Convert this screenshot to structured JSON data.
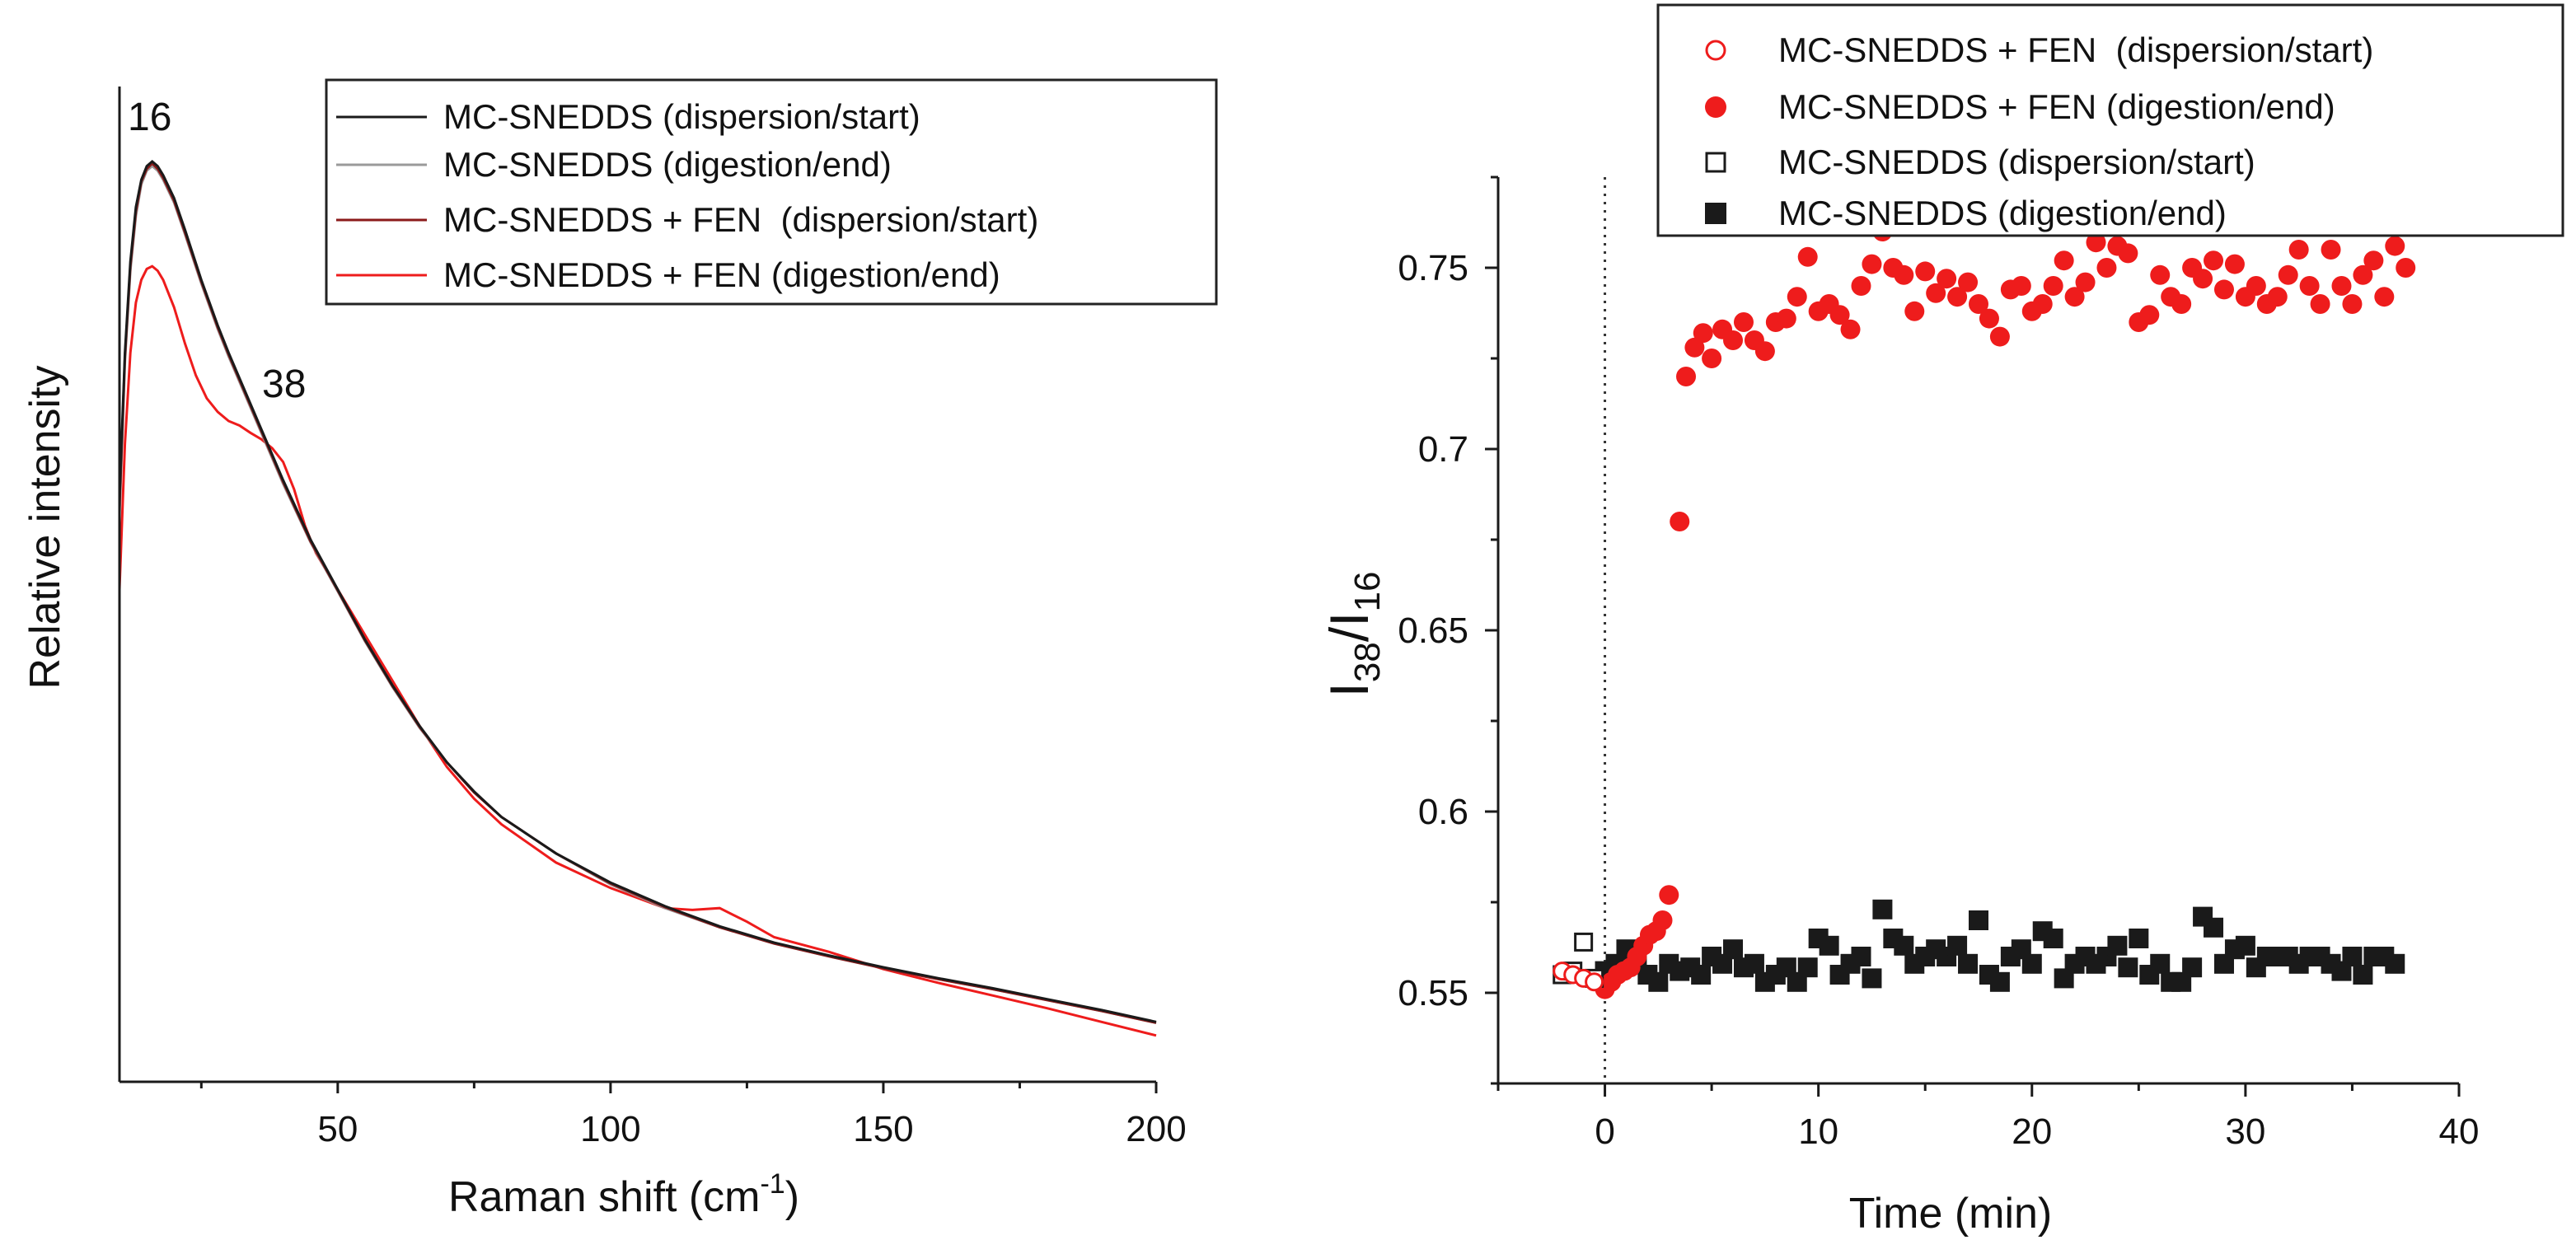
{
  "chart_data": [
    {
      "type": "line",
      "xlabel": "Raman shift (cm",
      "xlabel_sup": "-1",
      "xlabel_end": ")",
      "ylabel": "Relative intensity",
      "xlim": [
        10,
        200
      ],
      "xticks": [
        50,
        100,
        150,
        200
      ],
      "yticks": [],
      "grid": false,
      "legend_position": "top-right",
      "annotations": [
        {
          "text": "16",
          "x": 16
        },
        {
          "text": "38",
          "x": 38
        }
      ],
      "series": [
        {
          "name": "MC-SNEDDS (dispersion/start)",
          "color": "#1a1a1a",
          "x": [
            10,
            11,
            12,
            13,
            14,
            15,
            16,
            17,
            18,
            20,
            22,
            25,
            28,
            30,
            35,
            40,
            45,
            50,
            55,
            60,
            65,
            70,
            75,
            80,
            90,
            100,
            110,
            120,
            130,
            140,
            150,
            160,
            170,
            180,
            190,
            200
          ],
          "y": [
            0.62,
            0.78,
            0.88,
            0.94,
            0.97,
            0.985,
            0.99,
            0.985,
            0.975,
            0.95,
            0.915,
            0.86,
            0.81,
            0.78,
            0.71,
            0.64,
            0.575,
            0.52,
            0.465,
            0.415,
            0.37,
            0.33,
            0.298,
            0.27,
            0.23,
            0.198,
            0.172,
            0.15,
            0.132,
            0.118,
            0.105,
            0.093,
            0.082,
            0.07,
            0.058,
            0.045
          ]
        },
        {
          "name": "MC-SNEDDS (digestion/end)",
          "color": "#9a9a9a",
          "x": [
            10,
            11,
            12,
            13,
            14,
            15,
            16,
            17,
            18,
            20,
            22,
            25,
            28,
            30,
            35,
            40,
            45,
            50,
            55,
            60,
            65,
            70,
            75,
            80,
            90,
            100,
            110,
            120,
            130,
            140,
            150,
            160,
            170,
            180,
            190,
            200
          ],
          "y": [
            0.6,
            0.77,
            0.87,
            0.93,
            0.965,
            0.98,
            0.985,
            0.98,
            0.97,
            0.945,
            0.91,
            0.856,
            0.806,
            0.776,
            0.706,
            0.636,
            0.572,
            0.518,
            0.463,
            0.413,
            0.368,
            0.33,
            0.297,
            0.27,
            0.23,
            0.196,
            0.17,
            0.149,
            0.131,
            0.117,
            0.104,
            0.092,
            0.081,
            0.069,
            0.057,
            0.044
          ]
        },
        {
          "name": "MC-SNEDDS + FEN  (dispersion/start)",
          "color": "#8b1a1a",
          "x": [
            10,
            11,
            12,
            13,
            14,
            15,
            16,
            17,
            18,
            20,
            22,
            25,
            28,
            30,
            35,
            40,
            45,
            50,
            55,
            60,
            65,
            70,
            75,
            80,
            90,
            100,
            110,
            120,
            130,
            140,
            150,
            160,
            170,
            180,
            190,
            200
          ],
          "y": [
            0.61,
            0.775,
            0.875,
            0.935,
            0.968,
            0.982,
            0.988,
            0.982,
            0.972,
            0.947,
            0.912,
            0.858,
            0.808,
            0.778,
            0.708,
            0.638,
            0.573,
            0.519,
            0.464,
            0.414,
            0.369,
            0.33,
            0.297,
            0.27,
            0.23,
            0.197,
            0.171,
            0.149,
            0.131,
            0.117,
            0.104,
            0.092,
            0.081,
            0.069,
            0.057,
            0.044
          ]
        },
        {
          "name": "MC-SNEDDS + FEN (digestion/end)",
          "color": "#ee1c1c",
          "x": [
            10,
            11,
            12,
            13,
            14,
            15,
            16,
            17,
            18,
            20,
            22,
            24,
            26,
            28,
            30,
            32,
            34,
            36,
            38,
            40,
            42,
            44,
            46,
            48,
            50,
            55,
            60,
            65,
            70,
            75,
            80,
            90,
            100,
            110,
            115,
            120,
            125,
            130,
            140,
            150,
            160,
            170,
            180,
            190,
            200
          ],
          "y": [
            0.52,
            0.68,
            0.78,
            0.835,
            0.86,
            0.872,
            0.875,
            0.87,
            0.86,
            0.83,
            0.79,
            0.755,
            0.73,
            0.715,
            0.705,
            0.7,
            0.692,
            0.685,
            0.675,
            0.66,
            0.63,
            0.59,
            0.56,
            0.54,
            0.52,
            0.47,
            0.42,
            0.37,
            0.325,
            0.29,
            0.262,
            0.22,
            0.192,
            0.17,
            0.168,
            0.17,
            0.155,
            0.138,
            0.122,
            0.103,
            0.088,
            0.074,
            0.06,
            0.045,
            0.03
          ]
        }
      ]
    },
    {
      "type": "scatter",
      "xlabel": "Time (min)",
      "ylabel_main": "I",
      "ylabel_sub1": "38",
      "ylabel_mid": "/I",
      "ylabel_sub2": "16",
      "xlim": [
        -5,
        40
      ],
      "ylim": [
        0.525,
        0.775
      ],
      "xticks": [
        0,
        10,
        20,
        30,
        40
      ],
      "yticks": [
        0.55,
        0.6,
        0.65,
        0.7,
        0.75
      ],
      "ytick_labels": [
        "0.55",
        "0.6",
        "0.65",
        "0.7",
        "0.75"
      ],
      "vline_x": 0,
      "grid": false,
      "legend_position": "top-right",
      "series": [
        {
          "name": "MC-SNEDDS + FEN  (dispersion/start)",
          "marker": "open-circle",
          "color": "#ee1c1c",
          "x": [
            -2.0,
            -1.5,
            -1.0,
            -0.5
          ],
          "y": [
            0.556,
            0.555,
            0.554,
            0.553
          ]
        },
        {
          "name": "MC-SNEDDS + FEN (digestion/end)",
          "marker": "filled-circle",
          "color": "#ee1c1c",
          "x": [
            0.0,
            0.3,
            0.6,
            0.9,
            1.2,
            1.5,
            1.8,
            2.1,
            2.4,
            2.7,
            3.0,
            3.5,
            3.8,
            4.2,
            4.6,
            5.0,
            5.5,
            6.0,
            6.5,
            7.0,
            7.5,
            8.0,
            8.5,
            9.0,
            9.5,
            10.0,
            10.5,
            11.0,
            11.5,
            12.0,
            12.5,
            13.0,
            13.5,
            14.0,
            14.5,
            15.0,
            15.5,
            16.0,
            16.5,
            17.0,
            17.5,
            18.0,
            18.5,
            19.0,
            19.5,
            20.0,
            20.5,
            21.0,
            21.5,
            22.0,
            22.5,
            23.0,
            23.5,
            24.0,
            24.5,
            25.0,
            25.5,
            26.0,
            26.5,
            27.0,
            27.5,
            28.0,
            28.5,
            29.0,
            29.5,
            30.0,
            30.5,
            31.0,
            31.5,
            32.0,
            32.5,
            33.0,
            33.5,
            34.0,
            34.5,
            35.0,
            35.5,
            36.0,
            36.5,
            37.0,
            37.5
          ],
          "y": [
            0.551,
            0.553,
            0.555,
            0.556,
            0.557,
            0.56,
            0.563,
            0.566,
            0.567,
            0.57,
            0.577,
            0.68,
            0.72,
            0.728,
            0.732,
            0.725,
            0.733,
            0.73,
            0.735,
            0.73,
            0.727,
            0.735,
            0.736,
            0.742,
            0.753,
            0.738,
            0.74,
            0.737,
            0.733,
            0.745,
            0.751,
            0.76,
            0.75,
            0.748,
            0.738,
            0.749,
            0.743,
            0.747,
            0.742,
            0.746,
            0.74,
            0.736,
            0.731,
            0.744,
            0.745,
            0.738,
            0.74,
            0.745,
            0.752,
            0.742,
            0.746,
            0.757,
            0.75,
            0.756,
            0.754,
            0.735,
            0.737,
            0.748,
            0.742,
            0.74,
            0.75,
            0.747,
            0.752,
            0.744,
            0.751,
            0.742,
            0.745,
            0.74,
            0.742,
            0.748,
            0.755,
            0.745,
            0.74,
            0.755,
            0.745,
            0.74,
            0.748,
            0.752,
            0.742,
            0.756,
            0.75
          ]
        },
        {
          "name": "MC-SNEDDS (dispersion/start)",
          "marker": "open-square",
          "color": "#1a1a1a",
          "x": [
            -2.0,
            -1.5,
            -1.0,
            -0.5
          ],
          "y": [
            0.555,
            0.556,
            0.564,
            0.554
          ]
        },
        {
          "name": "MC-SNEDDS (digestion/end)",
          "marker": "filled-square",
          "color": "#1a1a1a",
          "x": [
            0.0,
            0.5,
            1.0,
            1.5,
            2.0,
            2.5,
            3.0,
            3.5,
            4.0,
            4.5,
            5.0,
            5.5,
            6.0,
            6.5,
            7.0,
            7.5,
            8.0,
            8.5,
            9.0,
            9.5,
            10.0,
            10.5,
            11.0,
            11.5,
            12.0,
            12.5,
            13.0,
            13.5,
            14.0,
            14.5,
            15.0,
            15.5,
            16.0,
            16.5,
            17.0,
            17.5,
            18.0,
            18.5,
            19.0,
            19.5,
            20.0,
            20.5,
            21.0,
            21.5,
            22.0,
            22.5,
            23.0,
            23.5,
            24.0,
            24.5,
            25.0,
            25.5,
            26.0,
            26.5,
            27.0,
            27.5,
            28.0,
            28.5,
            29.0,
            29.5,
            30.0,
            30.5,
            31.0,
            31.5,
            32.0,
            32.5,
            33.0,
            33.5,
            34.0,
            34.5,
            35.0,
            35.5,
            36.0,
            36.5,
            37.0
          ],
          "y": [
            0.556,
            0.558,
            0.562,
            0.56,
            0.555,
            0.553,
            0.558,
            0.556,
            0.557,
            0.555,
            0.56,
            0.558,
            0.562,
            0.557,
            0.558,
            0.553,
            0.555,
            0.557,
            0.553,
            0.557,
            0.565,
            0.563,
            0.555,
            0.558,
            0.56,
            0.554,
            0.573,
            0.565,
            0.563,
            0.558,
            0.56,
            0.562,
            0.56,
            0.563,
            0.558,
            0.57,
            0.555,
            0.553,
            0.56,
            0.562,
            0.558,
            0.567,
            0.565,
            0.554,
            0.558,
            0.56,
            0.558,
            0.56,
            0.563,
            0.557,
            0.565,
            0.555,
            0.558,
            0.553,
            0.553,
            0.557,
            0.571,
            0.568,
            0.558,
            0.562,
            0.563,
            0.557,
            0.56,
            0.56,
            0.56,
            0.558,
            0.56,
            0.56,
            0.558,
            0.556,
            0.56,
            0.555,
            0.56,
            0.56,
            0.558
          ]
        }
      ]
    }
  ]
}
